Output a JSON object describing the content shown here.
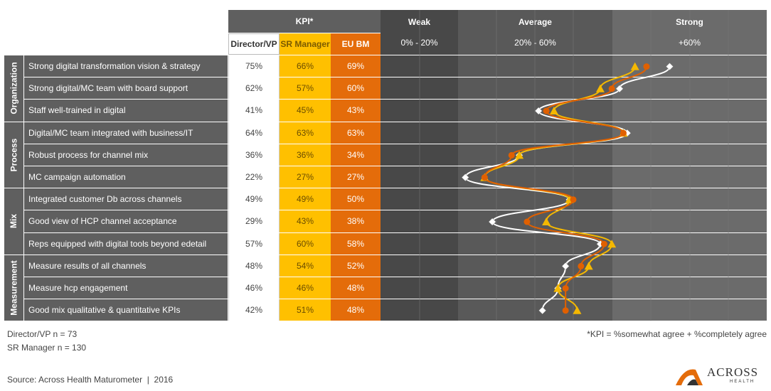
{
  "header": {
    "kpi_title": "KPI*",
    "col_director": "Director/VP",
    "col_sr": "SR Manager",
    "col_eu": "EU BM",
    "weak": {
      "title": "Weak",
      "range": "0% - 20%"
    },
    "average": {
      "title": "Average",
      "range": "20% - 60%"
    },
    "strong": {
      "title": "Strong",
      "range": "+60%"
    }
  },
  "categories": [
    {
      "label": "Organization",
      "rows": [
        0,
        2
      ]
    },
    {
      "label": "Process",
      "rows": [
        3,
        5
      ]
    },
    {
      "label": "Mix",
      "rows": [
        6,
        8
      ]
    },
    {
      "label": "Measurement",
      "rows": [
        9,
        11
      ]
    }
  ],
  "rows": [
    {
      "label": "Strong digital transformation vision & strategy",
      "director": "75%",
      "sr": "66%",
      "eu": "69%"
    },
    {
      "label": "Strong digital/MC team with board support",
      "director": "62%",
      "sr": "57%",
      "eu": "60%"
    },
    {
      "label": "Staff well-trained in digital",
      "director": "41%",
      "sr": "45%",
      "eu": "43%"
    },
    {
      "label": "Digital/MC team integrated with business/IT",
      "director": "64%",
      "sr": "63%",
      "eu": "63%"
    },
    {
      "label": "Robust process for channel mix",
      "director": "36%",
      "sr": "36%",
      "eu": "34%"
    },
    {
      "label": "MC campaign automation",
      "director": "22%",
      "sr": "27%",
      "eu": "27%"
    },
    {
      "label": "Integrated customer Db across channels",
      "director": "49%",
      "sr": "49%",
      "eu": "50%"
    },
    {
      "label": "Good view of HCP channel acceptance",
      "director": "29%",
      "sr": "43%",
      "eu": "38%"
    },
    {
      "label": "Reps equipped with digital tools beyond edetail",
      "director": "57%",
      "sr": "60%",
      "eu": "58%"
    },
    {
      "label": "Measure results of all channels",
      "director": "48%",
      "sr": "54%",
      "eu": "52%"
    },
    {
      "label": "Measure hcp engagement",
      "director": "46%",
      "sr": "46%",
      "eu": "48%"
    },
    {
      "label": "Good mix qualitative & quantitative KPIs",
      "director": "42%",
      "sr": "51%",
      "eu": "48%"
    }
  ],
  "chart_data": {
    "type": "line",
    "orientation": "horizontal (values along x, items along y)",
    "categories": [
      "Strong digital transformation vision & strategy",
      "Strong digital/MC team with board support",
      "Staff well-trained in digital",
      "Digital/MC team integrated with business/IT",
      "Robust process for channel mix",
      "MC campaign automation",
      "Integrated customer Db across channels",
      "Good view of HCP channel acceptance",
      "Reps equipped with digital tools beyond edetail",
      "Measure results of all channels",
      "Measure hcp engagement",
      "Good mix qualitative & quantitative KPIs"
    ],
    "xlim": [
      0,
      80
    ],
    "series": [
      {
        "name": "Director/VP",
        "color": "#ffffff",
        "marker": "diamond",
        "values": [
          75,
          62,
          41,
          64,
          36,
          22,
          49,
          29,
          57,
          48,
          46,
          42
        ]
      },
      {
        "name": "SR Manager",
        "color": "#f5b800",
        "marker": "triangle",
        "values": [
          66,
          57,
          45,
          63,
          36,
          27,
          49,
          43,
          60,
          54,
          46,
          51
        ]
      },
      {
        "name": "EU BM",
        "color": "#e06000",
        "marker": "circle",
        "values": [
          69,
          60,
          43,
          63,
          34,
          27,
          50,
          38,
          58,
          52,
          48,
          48
        ]
      }
    ],
    "zones": [
      "Weak",
      "Average",
      "Strong"
    ]
  },
  "notes": {
    "n_director": "Director/VP n = 73",
    "n_sr": "SR Manager n = 130",
    "kpi_def": "*KPI = %somewhat agree + %completely agree",
    "source": "Source: Across Health Maturometer  |  2016"
  },
  "logo": {
    "name": "ACROSS",
    "sub": "HEALTH"
  },
  "colors": {
    "dark_bg": "#5f5f5f",
    "weak_bg": "#484848",
    "average_bg": "#595959",
    "strong_bg": "#6b6b6b",
    "sr_yellow": "#ffc000",
    "eu_orange": "#e46c0a"
  }
}
